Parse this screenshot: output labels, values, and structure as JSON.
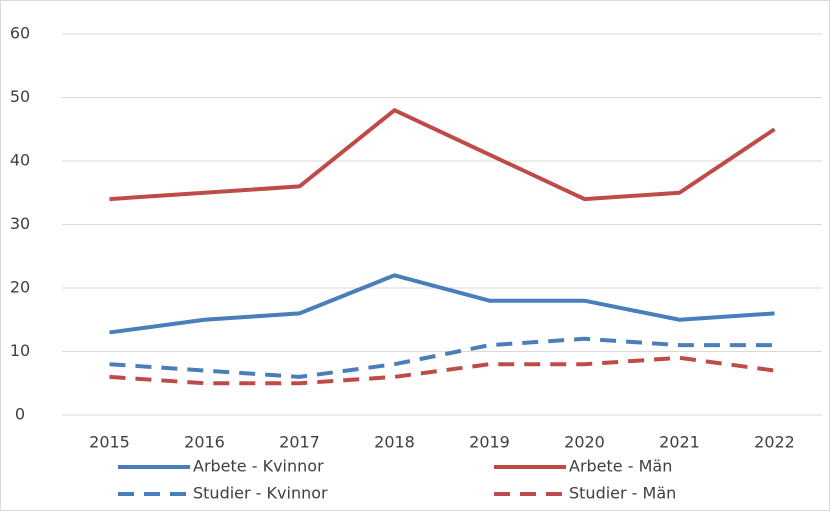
{
  "chart_data": {
    "type": "line",
    "categories": [
      "2015",
      "2016",
      "2017",
      "2018",
      "2019",
      "2020",
      "2021",
      "2022"
    ],
    "series": [
      {
        "name": "Arbete - Kvinnor",
        "color": "#4a7ebb",
        "dashed": false,
        "values": [
          13,
          15,
          16,
          22,
          18,
          18,
          15,
          16
        ]
      },
      {
        "name": "Arbete - Män",
        "color": "#be4b48",
        "dashed": false,
        "values": [
          34,
          35,
          36,
          48,
          41,
          34,
          35,
          45
        ]
      },
      {
        "name": "Studier - Kvinnor",
        "color": "#4a7ebb",
        "dashed": true,
        "values": [
          8,
          7,
          6,
          8,
          11,
          12,
          11,
          11
        ]
      },
      {
        "name": "Studier - Män",
        "color": "#be4b48",
        "dashed": true,
        "values": [
          6,
          5,
          5,
          6,
          8,
          8,
          9,
          7
        ]
      }
    ],
    "ylim": [
      0,
      60
    ],
    "yticks": [
      0,
      10,
      20,
      30,
      40,
      50,
      60
    ],
    "grid": true
  }
}
